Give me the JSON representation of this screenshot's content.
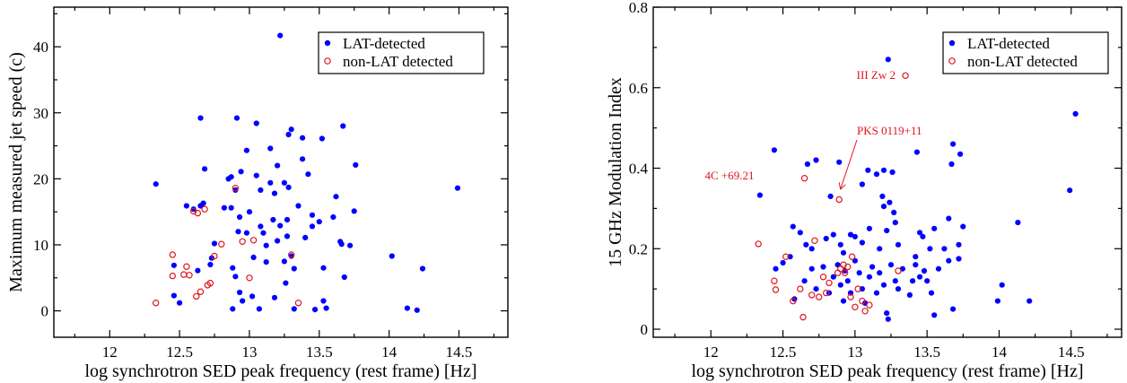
{
  "colors": {
    "lat": "#0000ff",
    "nonlat": "#e0141e"
  },
  "chart_data": [
    {
      "type": "scatter",
      "title": "",
      "xlabel": "log synchrotron SED peak frequency (rest frame) [Hz]",
      "ylabel": "Maximum measured jet speed (c)",
      "xlim": [
        11.6,
        14.85
      ],
      "ylim": [
        -4,
        46
      ],
      "xticks": [
        12,
        12.5,
        13,
        13.5,
        14,
        14.5
      ],
      "xtick_labels": [
        "12",
        "12.5",
        "13",
        "13.5",
        "14",
        "14.5"
      ],
      "yticks": [
        0,
        10,
        20,
        30,
        40
      ],
      "ytick_labels": [
        "0",
        "10",
        "20",
        "30",
        "40"
      ],
      "grid": false,
      "legend_position": "top-right",
      "series": [
        {
          "name": "LAT-detected",
          "marker": "filled-circle",
          "points": [
            [
              13.22,
              41.7
            ],
            [
              12.33,
              19.2
            ],
            [
              12.46,
              6.9
            ],
            [
              12.46,
              2.3
            ],
            [
              12.5,
              1.2
            ],
            [
              12.55,
              15.9
            ],
            [
              12.6,
              15.4
            ],
            [
              12.63,
              6.1
            ],
            [
              12.65,
              29.2
            ],
            [
              12.65,
              15.9
            ],
            [
              12.67,
              16.3
            ],
            [
              12.68,
              21.5
            ],
            [
              12.72,
              7.0
            ],
            [
              12.73,
              8.0
            ],
            [
              12.75,
              10.2
            ],
            [
              12.82,
              15.6
            ],
            [
              12.85,
              20.0
            ],
            [
              12.87,
              20.3
            ],
            [
              12.88,
              6.5
            ],
            [
              12.87,
              15.6
            ],
            [
              12.88,
              0.3
            ],
            [
              12.9,
              5.2
            ],
            [
              12.9,
              18.3
            ],
            [
              12.91,
              29.2
            ],
            [
              12.92,
              12.0
            ],
            [
              12.93,
              14.2
            ],
            [
              12.93,
              2.8
            ],
            [
              12.94,
              21.1
            ],
            [
              12.95,
              1.5
            ],
            [
              12.98,
              11.8
            ],
            [
              12.98,
              24.3
            ],
            [
              13.0,
              15.0
            ],
            [
              13.02,
              2.2
            ],
            [
              13.03,
              8.1
            ],
            [
              13.05,
              28.4
            ],
            [
              13.05,
              20.5
            ],
            [
              13.07,
              0.3
            ],
            [
              13.08,
              18.3
            ],
            [
              13.08,
              12.8
            ],
            [
              13.1,
              11.8
            ],
            [
              13.12,
              7.4
            ],
            [
              13.12,
              9.9
            ],
            [
              13.15,
              24.6
            ],
            [
              13.15,
              19.4
            ],
            [
              13.17,
              13.8
            ],
            [
              13.18,
              17.8
            ],
            [
              13.18,
              2.0
            ],
            [
              13.2,
              22.0
            ],
            [
              13.2,
              10.6
            ],
            [
              13.22,
              12.9
            ],
            [
              13.25,
              19.4
            ],
            [
              13.25,
              7.5
            ],
            [
              13.26,
              4.2
            ],
            [
              13.27,
              13.8
            ],
            [
              13.27,
              11.3
            ],
            [
              13.28,
              26.7
            ],
            [
              13.28,
              18.7
            ],
            [
              13.3,
              27.5
            ],
            [
              13.3,
              8.3
            ],
            [
              13.32,
              6.4
            ],
            [
              13.32,
              0.3
            ],
            [
              13.35,
              15.9
            ],
            [
              13.38,
              26.2
            ],
            [
              13.38,
              23.0
            ],
            [
              13.4,
              11.1
            ],
            [
              13.42,
              20.7
            ],
            [
              13.45,
              14.5
            ],
            [
              13.45,
              12.8
            ],
            [
              13.47,
              0.2
            ],
            [
              13.5,
              13.5
            ],
            [
              13.52,
              26.1
            ],
            [
              13.53,
              6.5
            ],
            [
              13.53,
              1.5
            ],
            [
              13.55,
              0.4
            ],
            [
              13.6,
              14.2
            ],
            [
              13.62,
              17.3
            ],
            [
              13.65,
              10.5
            ],
            [
              13.66,
              10.1
            ],
            [
              13.67,
              28.0
            ],
            [
              13.68,
              5.1
            ],
            [
              13.72,
              9.9
            ],
            [
              13.75,
              15.1
            ],
            [
              13.76,
              22.1
            ],
            [
              14.02,
              8.3
            ],
            [
              14.13,
              0.4
            ],
            [
              14.2,
              0.1
            ],
            [
              14.24,
              6.4
            ],
            [
              14.49,
              18.6
            ]
          ]
        },
        {
          "name": "non-LAT detected",
          "marker": "open-circle",
          "points": [
            [
              12.33,
              1.2
            ],
            [
              12.45,
              8.5
            ],
            [
              12.45,
              5.3
            ],
            [
              12.53,
              5.5
            ],
            [
              12.55,
              6.7
            ],
            [
              12.57,
              5.4
            ],
            [
              12.6,
              15.1
            ],
            [
              12.62,
              2.2
            ],
            [
              12.63,
              14.8
            ],
            [
              12.65,
              2.9
            ],
            [
              12.68,
              15.4
            ],
            [
              12.7,
              3.9
            ],
            [
              12.72,
              4.2
            ],
            [
              12.75,
              8.3
            ],
            [
              12.8,
              10.1
            ],
            [
              12.9,
              18.6
            ],
            [
              12.95,
              10.5
            ],
            [
              13.0,
              5.0
            ],
            [
              13.03,
              10.7
            ],
            [
              13.3,
              8.5
            ],
            [
              13.35,
              1.2
            ]
          ]
        }
      ]
    },
    {
      "type": "scatter",
      "title": "",
      "xlabel": "log synchrotron SED peak frequency (rest frame) [Hz]",
      "ylabel": "15 GHz Modulation Index",
      "xlim": [
        11.6,
        14.85
      ],
      "ylim": [
        -0.02,
        0.8
      ],
      "xticks": [
        12,
        12.5,
        13,
        13.5,
        14,
        14.5
      ],
      "xtick_labels": [
        "12",
        "12.5",
        "13",
        "13.5",
        "14",
        "14.5"
      ],
      "yticks": [
        0,
        0.2,
        0.4,
        0.6,
        0.8
      ],
      "ytick_labels": [
        "0",
        "0.2",
        "0.4",
        "0.6",
        "0.8"
      ],
      "grid": false,
      "legend_position": "top-right",
      "annotations": [
        {
          "text": "III Zw 2",
          "x": 13.35,
          "y": 0.63
        },
        {
          "text": "4C +69.21",
          "x": 12.65,
          "y": 0.375
        },
        {
          "text": "PKS 0119+11",
          "x": 12.89,
          "y": 0.322,
          "arrow": true
        }
      ],
      "series": [
        {
          "name": "LAT-detected",
          "marker": "filled-circle",
          "points": [
            [
              13.23,
              0.67
            ],
            [
              14.53,
              0.535
            ],
            [
              12.44,
              0.445
            ],
            [
              12.67,
              0.41
            ],
            [
              12.73,
              0.42
            ],
            [
              12.89,
              0.415
            ],
            [
              13.09,
              0.395
            ],
            [
              13.15,
              0.385
            ],
            [
              13.2,
              0.395
            ],
            [
              13.26,
              0.39
            ],
            [
              13.43,
              0.44
            ],
            [
              13.68,
              0.46
            ],
            [
              13.67,
              0.41
            ],
            [
              13.73,
              0.435
            ],
            [
              12.83,
              0.33
            ],
            [
              12.34,
              0.333
            ],
            [
              13.05,
              0.36
            ],
            [
              13.19,
              0.33
            ],
            [
              13.2,
              0.305
            ],
            [
              13.24,
              0.315
            ],
            [
              14.49,
              0.345
            ],
            [
              13.27,
              0.29
            ],
            [
              12.57,
              0.255
            ],
            [
              12.62,
              0.24
            ],
            [
              12.66,
              0.21
            ],
            [
              12.7,
              0.2
            ],
            [
              12.8,
              0.225
            ],
            [
              12.85,
              0.235
            ],
            [
              12.9,
              0.21
            ],
            [
              12.92,
              0.19
            ],
            [
              12.97,
              0.235
            ],
            [
              13.0,
              0.23
            ],
            [
              13.05,
              0.215
            ],
            [
              13.1,
              0.25
            ],
            [
              13.17,
              0.2
            ],
            [
              13.22,
              0.245
            ],
            [
              13.28,
              0.265
            ],
            [
              13.3,
              0.21
            ],
            [
              13.42,
              0.18
            ],
            [
              13.45,
              0.24
            ],
            [
              13.47,
              0.23
            ],
            [
              13.52,
              0.2
            ],
            [
              13.55,
              0.25
            ],
            [
              13.65,
              0.275
            ],
            [
              13.72,
              0.21
            ],
            [
              13.75,
              0.255
            ],
            [
              14.13,
              0.265
            ],
            [
              12.45,
              0.15
            ],
            [
              12.5,
              0.165
            ],
            [
              12.55,
              0.18
            ],
            [
              12.58,
              0.075
            ],
            [
              12.65,
              0.12
            ],
            [
              12.7,
              0.15
            ],
            [
              12.73,
              0.1
            ],
            [
              12.78,
              0.155
            ],
            [
              12.82,
              0.09
            ],
            [
              12.85,
              0.13
            ],
            [
              12.88,
              0.16
            ],
            [
              12.9,
              0.11
            ],
            [
              12.92,
              0.07
            ],
            [
              12.93,
              0.145
            ],
            [
              12.95,
              0.12
            ],
            [
              12.97,
              0.09
            ],
            [
              13.0,
              0.17
            ],
            [
              13.03,
              0.14
            ],
            [
              13.05,
              0.1
            ],
            [
              13.07,
              0.065
            ],
            [
              13.1,
              0.13
            ],
            [
              13.12,
              0.155
            ],
            [
              13.15,
              0.09
            ],
            [
              13.17,
              0.14
            ],
            [
              13.2,
              0.11
            ],
            [
              13.22,
              0.04
            ],
            [
              13.23,
              0.025
            ],
            [
              13.25,
              0.16
            ],
            [
              13.28,
              0.12
            ],
            [
              13.3,
              0.1
            ],
            [
              13.33,
              0.15
            ],
            [
              13.38,
              0.085
            ],
            [
              13.4,
              0.12
            ],
            [
              13.42,
              0.16
            ],
            [
              13.45,
              0.13
            ],
            [
              13.48,
              0.145
            ],
            [
              13.5,
              0.12
            ],
            [
              13.53,
              0.09
            ],
            [
              13.55,
              0.035
            ],
            [
              13.58,
              0.15
            ],
            [
              13.62,
              0.2
            ],
            [
              13.65,
              0.17
            ],
            [
              13.68,
              0.05
            ],
            [
              13.72,
              0.175
            ],
            [
              13.99,
              0.07
            ],
            [
              14.02,
              0.11
            ],
            [
              14.21,
              0.07
            ]
          ]
        },
        {
          "name": "non-LAT detected",
          "marker": "open-circle",
          "points": [
            [
              13.35,
              0.63
            ],
            [
              12.65,
              0.375
            ],
            [
              12.89,
              0.322
            ],
            [
              12.33,
              0.212
            ],
            [
              12.44,
              0.12
            ],
            [
              12.45,
              0.098
            ],
            [
              12.52,
              0.18
            ],
            [
              12.57,
              0.07
            ],
            [
              12.62,
              0.1
            ],
            [
              12.64,
              0.03
            ],
            [
              12.7,
              0.085
            ],
            [
              12.72,
              0.22
            ],
            [
              12.75,
              0.08
            ],
            [
              12.78,
              0.13
            ],
            [
              12.8,
              0.09
            ],
            [
              12.82,
              0.115
            ],
            [
              12.88,
              0.14
            ],
            [
              12.9,
              0.15
            ],
            [
              12.92,
              0.16
            ],
            [
              12.93,
              0.14
            ],
            [
              12.95,
              0.155
            ],
            [
              12.97,
              0.08
            ],
            [
              12.98,
              0.18
            ],
            [
              13.0,
              0.055
            ],
            [
              13.02,
              0.1
            ],
            [
              13.05,
              0.07
            ],
            [
              13.07,
              0.045
            ],
            [
              13.1,
              0.06
            ],
            [
              13.3,
              0.145
            ]
          ]
        }
      ]
    }
  ]
}
